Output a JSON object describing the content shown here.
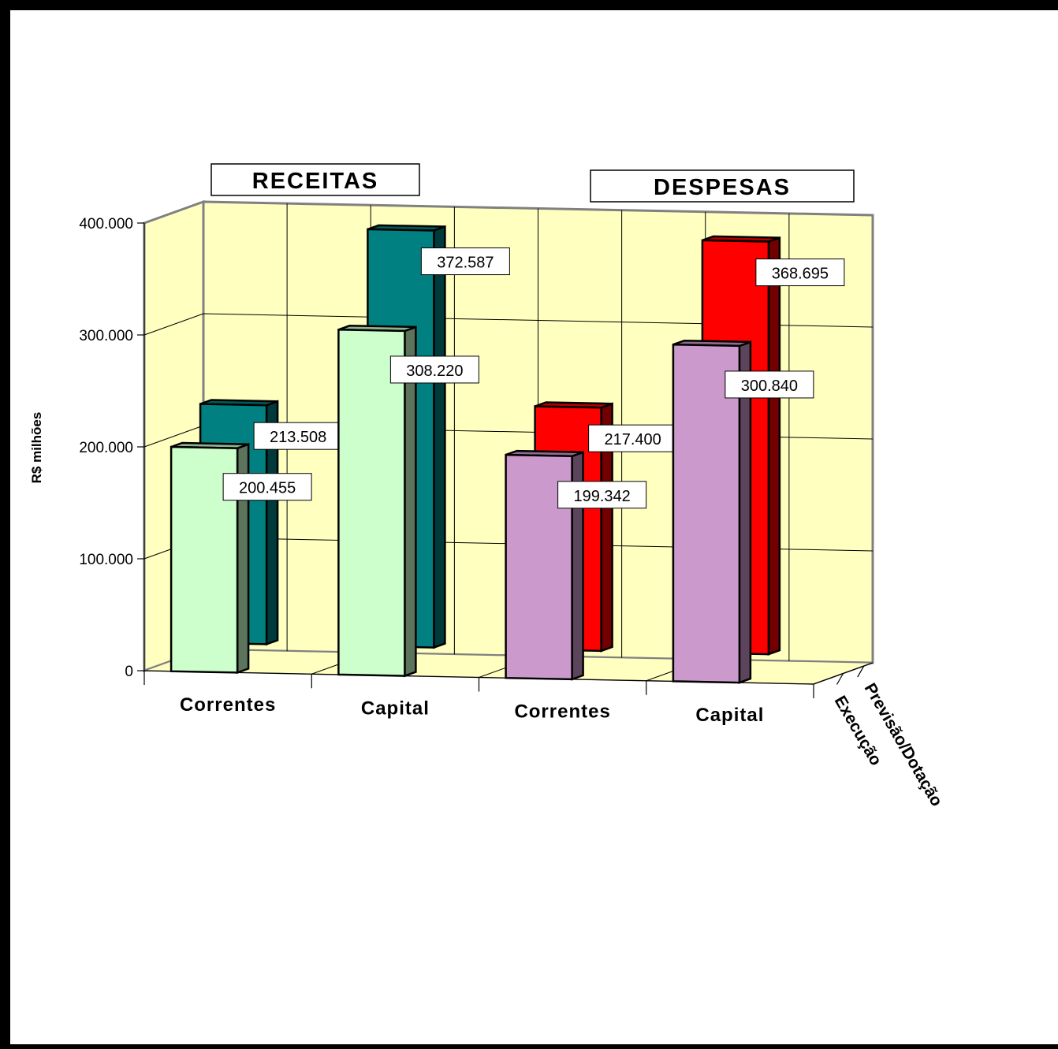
{
  "chart_data": {
    "type": "bar",
    "style": "3d-clustered",
    "ylabel": "R$ milhões",
    "ylim": [
      0,
      400000
    ],
    "yticks": [
      0,
      100000,
      200000,
      300000,
      400000
    ],
    "ytick_labels": [
      "0",
      "100.000",
      "200.000",
      "300.000",
      "400.000"
    ],
    "categories": [
      "Correntes",
      "Capital",
      "Correntes",
      "Capital"
    ],
    "groups": [
      {
        "title": "RECEITAS",
        "categories": [
          "Correntes",
          "Capital"
        ]
      },
      {
        "title": "DESPESAS",
        "categories": [
          "Correntes",
          "Capital"
        ]
      }
    ],
    "series": [
      {
        "name": "Execução",
        "values": [
          200455,
          308220,
          199342,
          300840
        ],
        "value_labels": [
          "200.455",
          "308.220",
          "199.342",
          "300.840"
        ],
        "colors": [
          "#ccffcc",
          "#ccffcc",
          "#cc99cc",
          "#cc99cc"
        ]
      },
      {
        "name": "Previsão/Dotação",
        "values": [
          213508,
          372587,
          217400,
          368695
        ],
        "value_labels": [
          "213.508",
          "372.587",
          "217.400",
          "368.695"
        ],
        "colors": [
          "#008080",
          "#008080",
          "#ff0000",
          "#ff0000"
        ]
      }
    ],
    "wall_color": "#ffffc0",
    "grid": true
  }
}
